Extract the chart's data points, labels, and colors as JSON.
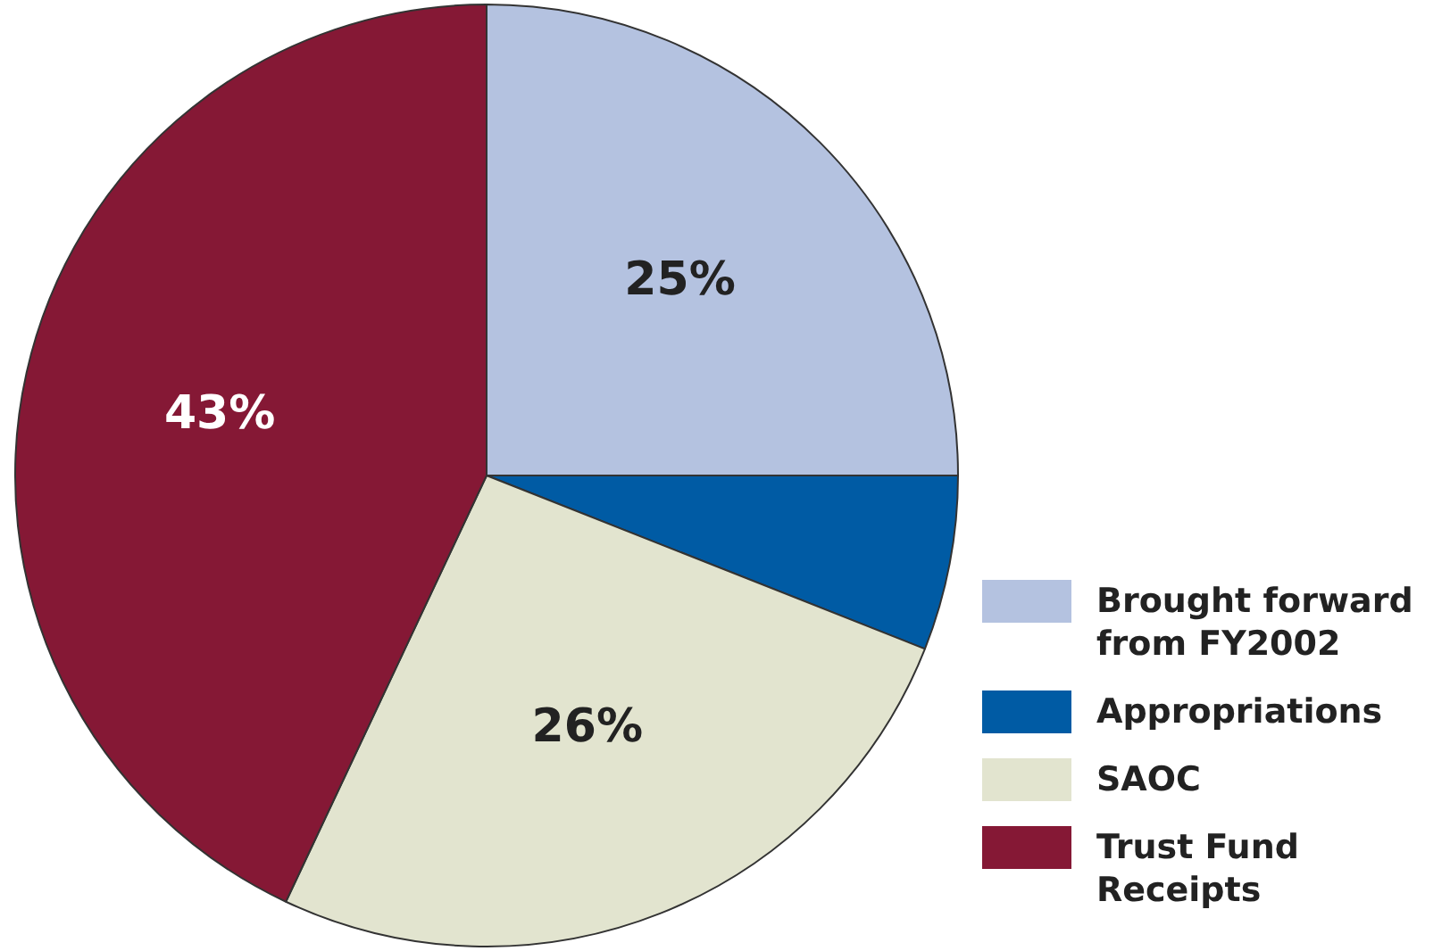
{
  "chart_data": {
    "type": "pie",
    "categories": [
      "Brought forward from FY2002",
      "Appropriations",
      "SAOC",
      "Trust Fund Receipts"
    ],
    "values": [
      25,
      6,
      26,
      43
    ],
    "colors": [
      "#b4c2e0",
      "#005ba4",
      "#e2e4cf",
      "#851835"
    ],
    "value_labels": [
      "25%",
      null,
      "26%",
      "43%"
    ],
    "legend": "bottom right"
  }
}
